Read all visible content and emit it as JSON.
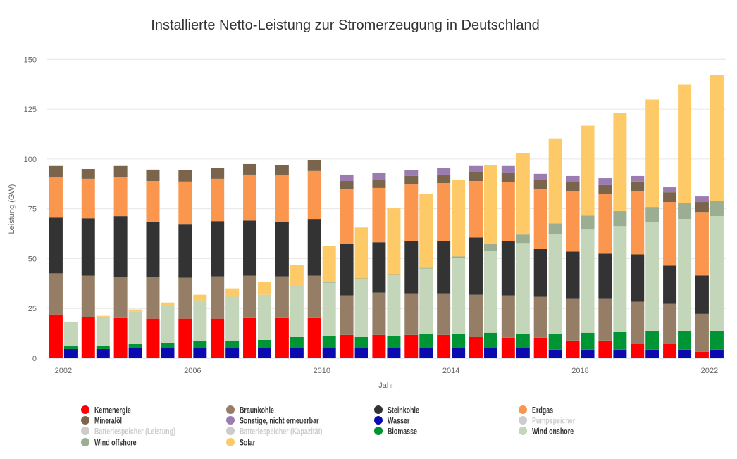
{
  "chart_data": {
    "type": "bar",
    "stacked": true,
    "title": "Installierte Netto-Leistung zur Stromerzeugung in Deutschland",
    "xlabel": "Jahr",
    "ylabel": "Leistung (GW)",
    "ylim": [
      0,
      150
    ],
    "yticks": [
      0,
      25,
      50,
      75,
      100,
      125,
      150
    ],
    "xticks": [
      "2002",
      "2006",
      "2010",
      "2014",
      "2018",
      "2022"
    ],
    "grid": true,
    "legend_position": "bottom",
    "categories": [
      "2002",
      "2003",
      "2004",
      "2005",
      "2006",
      "2007",
      "2008",
      "2009",
      "2010",
      "2011",
      "2012",
      "2013",
      "2014",
      "2015",
      "2016",
      "2017",
      "2018",
      "2019",
      "2020",
      "2021",
      "2022"
    ],
    "series": [
      {
        "name": "Kernenergie",
        "color": "#ff0000",
        "stack": "conventional",
        "visible": true,
        "values": [
          22.0,
          20.6,
          20.2,
          19.9,
          19.9,
          19.9,
          20.2,
          20.2,
          20.2,
          11.7,
          11.7,
          11.7,
          11.7,
          10.6,
          10.3,
          10.3,
          8.9,
          8.9,
          7.4,
          7.4,
          3.2
        ]
      },
      {
        "name": "Braunkohle",
        "color": "#967e66",
        "stack": "conventional",
        "visible": true,
        "values": [
          20.6,
          20.9,
          20.6,
          20.9,
          20.5,
          21.2,
          21.3,
          20.9,
          21.3,
          19.9,
          21.3,
          20.9,
          20.9,
          21.3,
          21.3,
          20.6,
          20.9,
          20.9,
          21.0,
          19.9,
          19.1
        ]
      },
      {
        "name": "Steinkohle",
        "color": "#333333",
        "stack": "conventional",
        "visible": true,
        "values": [
          28.3,
          28.7,
          30.5,
          27.6,
          27.0,
          27.7,
          27.6,
          27.3,
          28.4,
          25.8,
          25.2,
          26.3,
          26.3,
          28.7,
          27.3,
          24.1,
          23.7,
          22.7,
          23.7,
          19.2,
          19.2
        ]
      },
      {
        "name": "Erdgas",
        "color": "#fb964e",
        "stack": "conventional",
        "visible": true,
        "values": [
          20.2,
          19.9,
          19.5,
          20.6,
          21.3,
          21.3,
          23.1,
          23.4,
          24.1,
          27.4,
          27.3,
          28.3,
          29.0,
          28.4,
          29.4,
          30.1,
          30.2,
          30.1,
          31.6,
          31.9,
          31.9
        ]
      },
      {
        "name": "Mineralöl",
        "color": "#7b644c",
        "stack": "conventional",
        "visible": true,
        "values": [
          5.4,
          4.9,
          5.7,
          5.7,
          5.6,
          5.3,
          5.3,
          5.0,
          5.6,
          4.2,
          4.2,
          4.3,
          4.3,
          4.3,
          4.6,
          4.3,
          4.6,
          4.3,
          5.0,
          4.9,
          5.0
        ]
      },
      {
        "name": "Sonstige, nicht erneuerbar",
        "color": "#9a7cb0",
        "stack": "conventional",
        "visible": true,
        "values": [
          0,
          0,
          0,
          0,
          0,
          0,
          0,
          0,
          0,
          3.2,
          3.2,
          2.8,
          3.2,
          3.2,
          3.6,
          3.2,
          3.2,
          3.5,
          2.8,
          2.5,
          2.8
        ]
      },
      {
        "name": "Wasser",
        "color": "#0a0ab0",
        "stack": "renewable",
        "visible": true,
        "values": [
          4.6,
          4.6,
          5.0,
          5.0,
          5.0,
          5.0,
          5.0,
          5.0,
          5.0,
          5.0,
          5.0,
          5.0,
          5.3,
          5.0,
          5.0,
          4.3,
          4.3,
          4.3,
          4.3,
          4.3,
          4.3
        ]
      },
      {
        "name": "Pumpspeicher",
        "color": "#cccccc",
        "stack": "renewable",
        "visible": false
      },
      {
        "name": "Batteriespeicher (Leistung)",
        "color": "#cccccc",
        "stack": "renewable",
        "visible": false
      },
      {
        "name": "Batteriespeicher (Kapazität)",
        "color": "#cccccc",
        "stack": "renewable",
        "visible": false
      },
      {
        "name": "Biomasse",
        "color": "#009534",
        "stack": "renewable",
        "visible": true,
        "values": [
          1.4,
          1.8,
          2.1,
          2.8,
          3.5,
          3.9,
          4.2,
          5.6,
          6.3,
          6.0,
          6.3,
          7.1,
          7.1,
          7.8,
          7.4,
          7.8,
          8.5,
          8.8,
          9.5,
          9.5,
          9.5
        ]
      },
      {
        "name": "Wind onshore",
        "color": "#c3d6b9",
        "stack": "renewable",
        "visible": true,
        "values": [
          12.1,
          14.5,
          16.3,
          18.4,
          20.6,
          22.0,
          22.7,
          25.7,
          26.6,
          28.7,
          30.5,
          32.9,
          38.0,
          41.1,
          45.4,
          50.3,
          52.1,
          53.2,
          54.3,
          56.1,
          57.5
        ]
      },
      {
        "name": "Wind offshore",
        "color": "#9bae92",
        "stack": "renewable",
        "visible": true,
        "values": [
          0,
          0,
          0,
          0,
          0,
          0,
          0,
          0.1,
          0.4,
          0.4,
          0.4,
          0.7,
          0.7,
          3.5,
          4.3,
          5.3,
          6.7,
          7.5,
          7.8,
          7.8,
          7.8
        ]
      },
      {
        "name": "Solar",
        "color": "#fdca67",
        "stack": "renewable",
        "visible": true,
        "values": [
          0.3,
          0.4,
          1.1,
          1.8,
          2.8,
          4.2,
          6.4,
          10.3,
          18.1,
          25.5,
          33.0,
          36.9,
          38.3,
          39.4,
          40.7,
          42.6,
          45.1,
          49.2,
          53.9,
          59.5,
          63.1
        ]
      }
    ]
  }
}
